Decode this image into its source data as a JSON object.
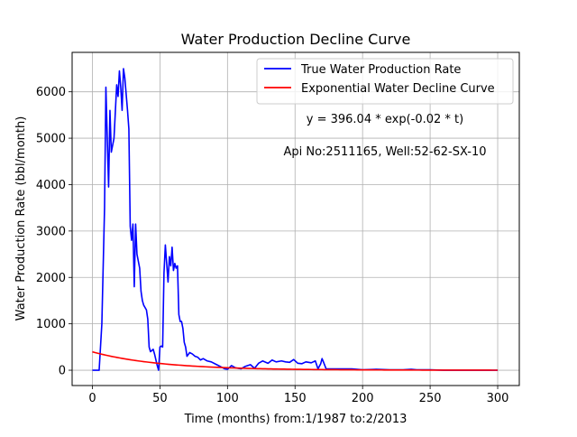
{
  "chart_data": {
    "type": "line",
    "title": "Water Production Decline Curve",
    "xlabel": "Time (months) from:1/1987 to:2/2013",
    "ylabel": "Water Production Rate (bbl/month)",
    "xlim": [
      -15,
      316
    ],
    "ylim": [
      -330,
      6850
    ],
    "x_ticks": [
      0,
      50,
      100,
      150,
      200,
      250,
      300
    ],
    "y_ticks": [
      0,
      1000,
      2000,
      3000,
      4000,
      5000,
      6000
    ],
    "grid": true,
    "legend_position": "top-right",
    "annotations": [
      "y = 396.04 * exp(-0.02 * t)",
      "Api No:2511165, Well:52-62-SX-10"
    ],
    "series": [
      {
        "name": "True Water Production Rate",
        "color": "#0000ff",
        "points": [
          [
            0,
            0
          ],
          [
            5,
            0
          ],
          [
            7,
            1000
          ],
          [
            9,
            3500
          ],
          [
            10,
            6100
          ],
          [
            11,
            5000
          ],
          [
            12,
            3950
          ],
          [
            13,
            5600
          ],
          [
            14,
            4700
          ],
          [
            16,
            5000
          ],
          [
            18,
            6150
          ],
          [
            19,
            5900
          ],
          [
            20,
            6450
          ],
          [
            21,
            6100
          ],
          [
            22,
            5600
          ],
          [
            23,
            6500
          ],
          [
            24,
            6300
          ],
          [
            26,
            5600
          ],
          [
            27,
            5200
          ],
          [
            28,
            3100
          ],
          [
            29,
            2800
          ],
          [
            30,
            3150
          ],
          [
            31,
            1800
          ],
          [
            32,
            3150
          ],
          [
            33,
            2500
          ],
          [
            35,
            2200
          ],
          [
            36,
            1700
          ],
          [
            37,
            1500
          ],
          [
            38,
            1400
          ],
          [
            40,
            1300
          ],
          [
            41,
            1100
          ],
          [
            42,
            500
          ],
          [
            43,
            400
          ],
          [
            45,
            450
          ],
          [
            46,
            350
          ],
          [
            48,
            100
          ],
          [
            49,
            0
          ],
          [
            50,
            500
          ],
          [
            51,
            520
          ],
          [
            52,
            500
          ],
          [
            53,
            2100
          ],
          [
            54,
            2700
          ],
          [
            55,
            2300
          ],
          [
            56,
            1900
          ],
          [
            57,
            2450
          ],
          [
            58,
            2250
          ],
          [
            59,
            2650
          ],
          [
            60,
            2150
          ],
          [
            61,
            2300
          ],
          [
            62,
            2200
          ],
          [
            63,
            2250
          ],
          [
            64,
            1200
          ],
          [
            65,
            1050
          ],
          [
            66,
            1050
          ],
          [
            67,
            900
          ],
          [
            68,
            600
          ],
          [
            69,
            500
          ],
          [
            70,
            300
          ],
          [
            72,
            380
          ],
          [
            74,
            350
          ],
          [
            76,
            300
          ],
          [
            78,
            280
          ],
          [
            80,
            220
          ],
          [
            82,
            250
          ],
          [
            85,
            200
          ],
          [
            88,
            180
          ],
          [
            92,
            120
          ],
          [
            96,
            60
          ],
          [
            98,
            30
          ],
          [
            100,
            20
          ],
          [
            103,
            100
          ],
          [
            106,
            50
          ],
          [
            110,
            30
          ],
          [
            113,
            80
          ],
          [
            117,
            120
          ],
          [
            120,
            40
          ],
          [
            123,
            150
          ],
          [
            126,
            200
          ],
          [
            130,
            150
          ],
          [
            133,
            220
          ],
          [
            136,
            180
          ],
          [
            140,
            200
          ],
          [
            143,
            180
          ],
          [
            146,
            170
          ],
          [
            149,
            230
          ],
          [
            152,
            150
          ],
          [
            155,
            140
          ],
          [
            158,
            180
          ],
          [
            162,
            160
          ],
          [
            165,
            200
          ],
          [
            167,
            30
          ],
          [
            169,
            140
          ],
          [
            170,
            250
          ],
          [
            171,
            180
          ],
          [
            173,
            30
          ],
          [
            178,
            30
          ],
          [
            185,
            30
          ],
          [
            192,
            30
          ],
          [
            200,
            10
          ],
          [
            210,
            20
          ],
          [
            220,
            10
          ],
          [
            230,
            10
          ],
          [
            236,
            20
          ],
          [
            240,
            10
          ],
          [
            250,
            10
          ],
          [
            260,
            0
          ],
          [
            270,
            0
          ],
          [
            280,
            0
          ],
          [
            290,
            0
          ],
          [
            300,
            0
          ]
        ]
      },
      {
        "name": "Exponential Water Decline Curve",
        "color": "#ff0000",
        "equation": {
          "a": 396.04,
          "b": -0.02
        },
        "x_range": [
          0,
          300
        ]
      }
    ]
  }
}
